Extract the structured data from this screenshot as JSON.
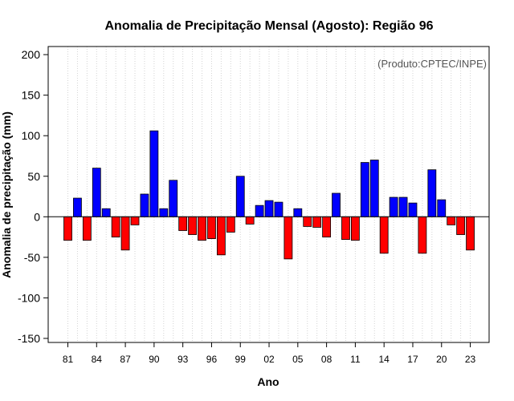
{
  "chart_data": {
    "type": "bar",
    "title": "Anomalia de Precipitação Mensal (Agosto): Região 96",
    "xlabel": "Ano",
    "ylabel": "Anomalia de precipitação (mm)",
    "credit": "(Produto:CPTEC/INPE)",
    "ylim": [
      -155,
      210
    ],
    "yticks": [
      -150,
      -100,
      -50,
      0,
      50,
      100,
      150,
      200
    ],
    "grid": true,
    "years": [
      1981,
      1982,
      1983,
      1984,
      1985,
      1986,
      1987,
      1988,
      1989,
      1990,
      1991,
      1992,
      1993,
      1994,
      1995,
      1996,
      1997,
      1998,
      1999,
      2000,
      2001,
      2002,
      2003,
      2004,
      2005,
      2006,
      2007,
      2008,
      2009,
      2010,
      2011,
      2012,
      2013,
      2014,
      2015,
      2016,
      2017,
      2018,
      2019,
      2020,
      2021,
      2022,
      2023
    ],
    "values": [
      -29,
      23,
      -29,
      60,
      10,
      -25,
      -41,
      -10,
      28,
      106,
      10,
      45,
      -17,
      -22,
      -29,
      -27,
      -47,
      -19,
      50,
      -9,
      14,
      20,
      18,
      -52,
      10,
      -12,
      -13,
      -25,
      29,
      -28,
      -29,
      67,
      70,
      -45,
      24,
      24,
      17,
      -45,
      58,
      21,
      -10,
      -22,
      -41
    ],
    "tick_years": [
      1981,
      1984,
      1987,
      1990,
      1993,
      1996,
      1999,
      2002,
      2005,
      2008,
      2011,
      2014,
      2017,
      2020,
      2023
    ],
    "tick_labels": [
      "81",
      "84",
      "87",
      "90",
      "93",
      "96",
      "99",
      "02",
      "05",
      "08",
      "11",
      "14",
      "17",
      "20",
      "23"
    ],
    "colors": {
      "positive": "#0000ff",
      "negative": "#ff0000",
      "outline": "#000000",
      "grid": "#d3d3d3"
    }
  }
}
